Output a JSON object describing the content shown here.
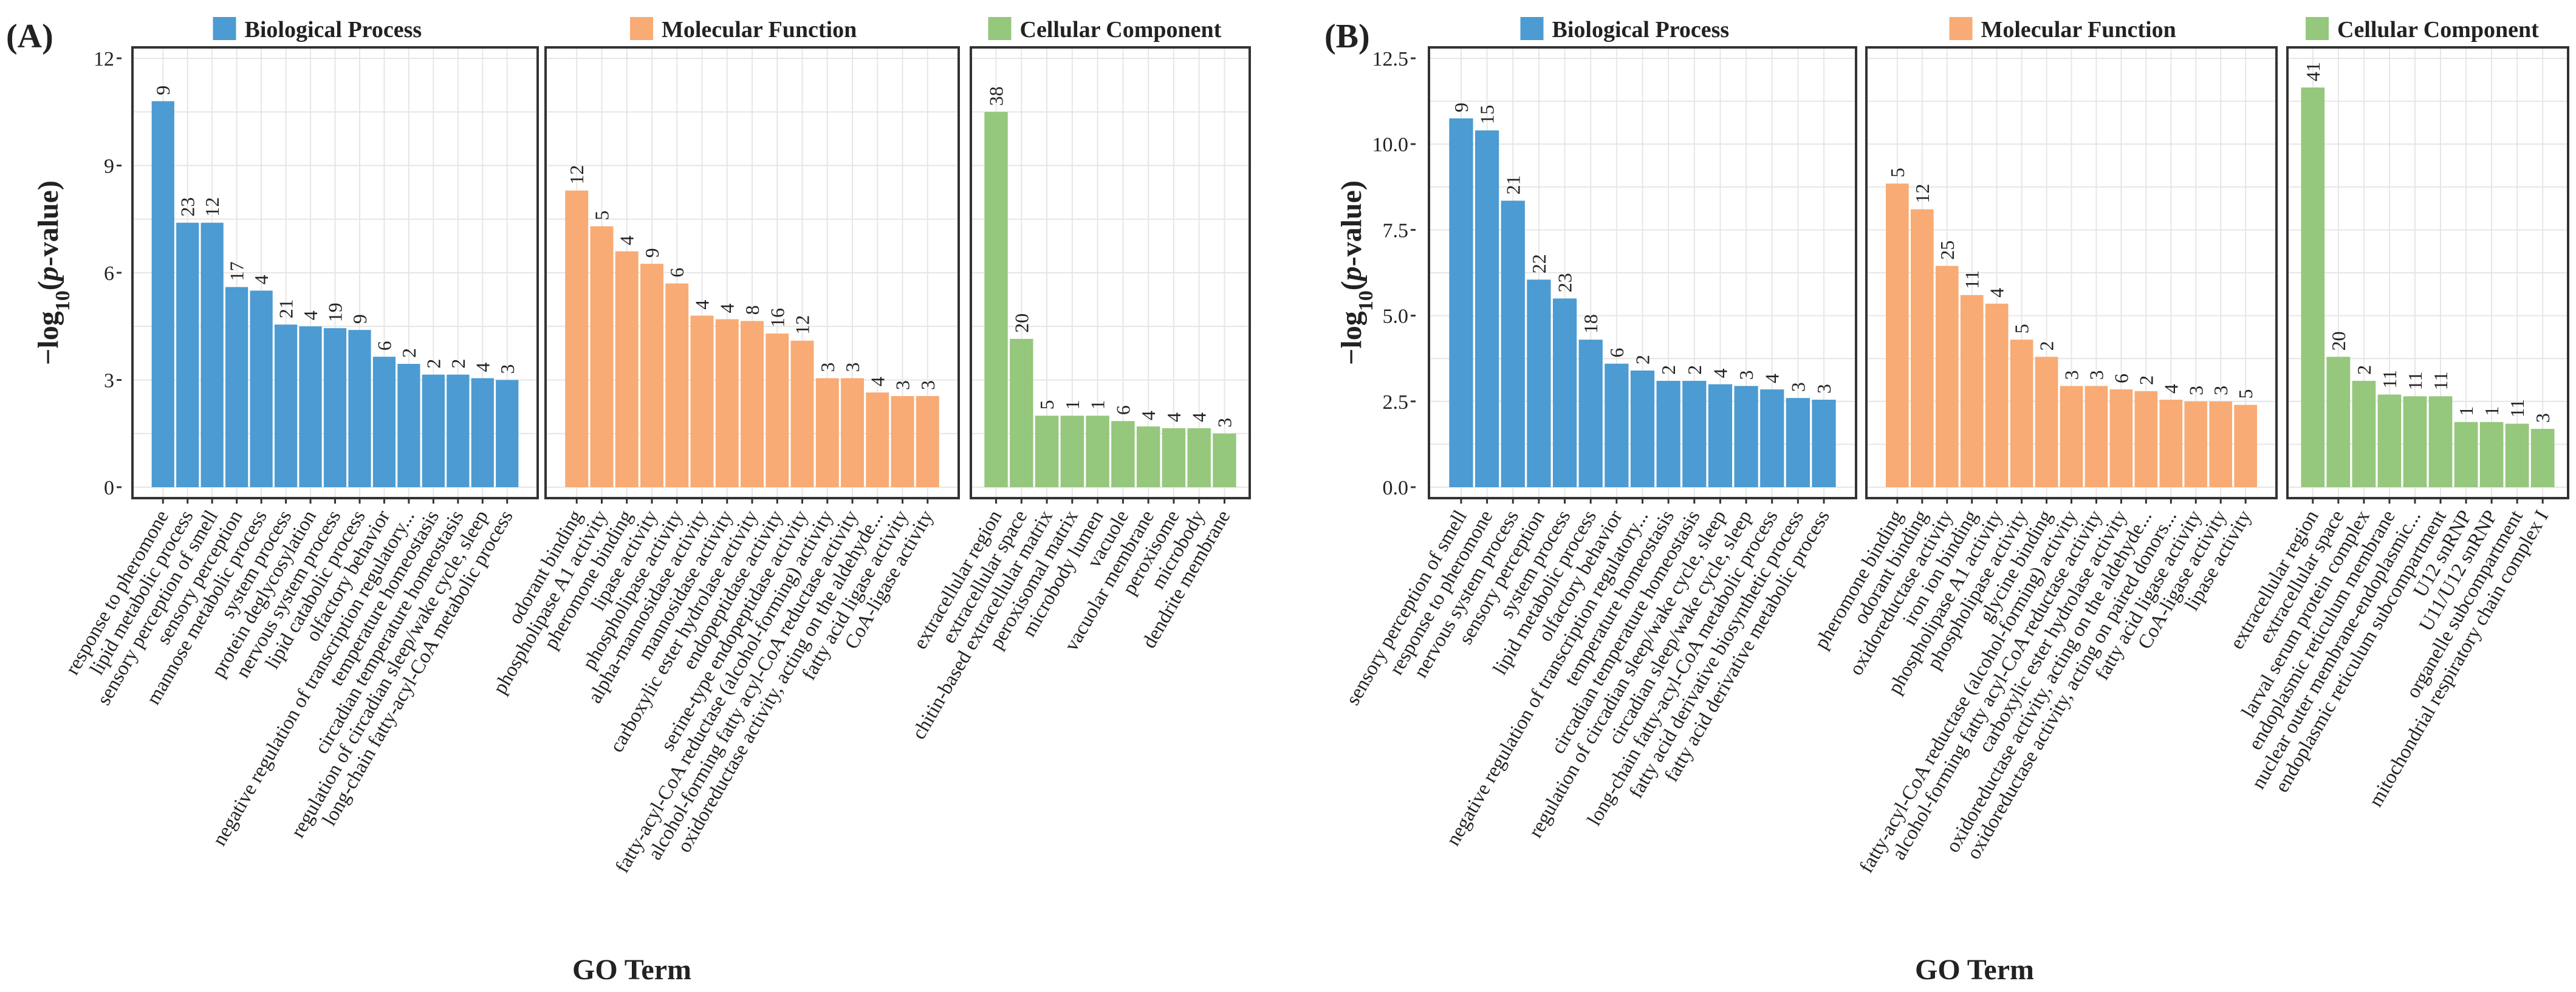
{
  "chart_data": [
    {
      "type": "bar",
      "panel_label": "(A)",
      "xlabel": "GO Term",
      "ylabel_prefix": "−log",
      "ylabel_sub": "10",
      "ylabel_mid": "(",
      "ylabel_italic": "p",
      "ylabel_suffix": "-value)",
      "ylim": [
        0,
        12
      ],
      "yticks": [
        0,
        3,
        6,
        9,
        12
      ],
      "yticks_text": [
        "0",
        "3",
        "6",
        "9",
        "12"
      ],
      "facets": [
        {
          "name": "Biological Process",
          "color": "#4c9bd2",
          "categories": [
            "response to pheromone",
            "lipid metabolic process",
            "sensory perception of smell",
            "sensory perception",
            "mannose metabolic process",
            "system process",
            "protein deglycosylation",
            "nervous system process",
            "lipid catabolic process",
            "olfactory behavior",
            "negative regulation of transcription regulatory...",
            "temperature homeostasis",
            "circadian temperature homeostasis",
            "regulation of circadian sleep/wake cycle, sleep",
            "long-chain fatty-acyl-CoA metabolic process"
          ],
          "values": [
            10.8,
            7.4,
            7.4,
            5.6,
            5.5,
            4.55,
            4.5,
            4.45,
            4.4,
            3.65,
            3.45,
            3.15,
            3.15,
            3.05,
            3.0
          ],
          "counts": [
            "9",
            "23",
            "12",
            "17",
            "4",
            "21",
            "4",
            "19",
            "9",
            "6",
            "2",
            "2",
            "2",
            "4",
            "3"
          ]
        },
        {
          "name": "Molecular Function",
          "color": "#f8ab74",
          "categories": [
            "odorant binding",
            "phospholipase A1 activity",
            "pheromone binding",
            "lipase activity",
            "phospholipase activity",
            "alpha-mannosidase activity",
            "mannosidase activity",
            "carboxylic ester hydrolase activity",
            "endopeptidase activity",
            "serine-type endopeptidase activity",
            "fatty-acyl-CoA reductase (alcohol-forming) activity",
            "alcohol-forming fatty acyl-CoA reductase activity",
            "oxidoreductase activity, acting on the aldehyde...",
            "fatty acid ligase activity",
            "CoA-ligase activity"
          ],
          "values": [
            8.3,
            7.3,
            6.6,
            6.25,
            5.7,
            4.8,
            4.7,
            4.65,
            4.3,
            4.1,
            3.05,
            3.05,
            2.65,
            2.55,
            2.55
          ],
          "counts": [
            "12",
            "5",
            "4",
            "9",
            "6",
            "4",
            "4",
            "8",
            "16",
            "12",
            "3",
            "3",
            "4",
            "3",
            "3"
          ]
        },
        {
          "name": "Cellular Component",
          "color": "#95c77c",
          "categories": [
            "extracellular region",
            "extracellular space",
            "chitin-based extracellular matrix",
            "peroxisomal matrix",
            "microbody lumen",
            "vacuole",
            "vacuolar membrane",
            "peroxisome",
            "microbody",
            "dendrite membrane"
          ],
          "values": [
            10.5,
            4.15,
            2.0,
            2.0,
            2.0,
            1.85,
            1.7,
            1.65,
            1.65,
            1.5
          ],
          "counts": [
            "38",
            "20",
            "5",
            "1",
            "1",
            "6",
            "4",
            "4",
            "4",
            "3"
          ]
        }
      ]
    },
    {
      "type": "bar",
      "panel_label": "(B)",
      "xlabel": "GO Term",
      "ylabel_prefix": "−log",
      "ylabel_sub": "10",
      "ylabel_mid": "(",
      "ylabel_italic": "p",
      "ylabel_suffix": "-value)",
      "ylim": [
        0,
        12.5
      ],
      "yticks": [
        0,
        2.5,
        5,
        7.5,
        10,
        12.5
      ],
      "yticks_text": [
        "0.0",
        "2.5",
        "5.0",
        "7.5",
        "10.0",
        "12.5"
      ],
      "facets": [
        {
          "name": "Biological Process",
          "color": "#4c9bd2",
          "categories": [
            "sensory perception of smell",
            "response to pheromone",
            "nervous system process",
            "sensory perception",
            "system process",
            "lipid metabolic process",
            "olfactory behavior",
            "negative regulation of transcription regulatory...",
            "temperature homeostasis",
            "circadian temperature homeostasis",
            "regulation of circadian sleep/wake cycle, sleep",
            "circadian sleep/wake cycle, sleep",
            "long-chain fatty-acyl-CoA metabolic process",
            "fatty acid derivative biosynthetic process",
            "fatty acid derivative metabolic process"
          ],
          "values": [
            10.75,
            10.4,
            8.35,
            6.05,
            5.5,
            4.3,
            3.6,
            3.4,
            3.1,
            3.1,
            3.0,
            2.95,
            2.85,
            2.6,
            2.55
          ],
          "counts": [
            "9",
            "15",
            "21",
            "22",
            "23",
            "18",
            "6",
            "2",
            "2",
            "2",
            "4",
            "3",
            "4",
            "3",
            "3"
          ]
        },
        {
          "name": "Molecular Function",
          "color": "#f8ab74",
          "categories": [
            "pheromone binding",
            "odorant binding",
            "oxidoreductase activity",
            "iron ion binding",
            "phospholipase A1 activity",
            "phospholipase activity",
            "glycine binding",
            "fatty-acyl-CoA reductase (alcohol-forming) activity",
            "alcohol-forming fatty acyl-CoA reductase activity",
            "carboxylic ester hydrolase activity",
            "oxidoreductase activity, acting on the aldehyde...",
            "oxidoreductase activity, acting on paired donors...",
            "fatty acid ligase activity",
            "CoA-ligase activity",
            "lipase activity"
          ],
          "values": [
            8.85,
            8.1,
            6.45,
            5.6,
            5.35,
            4.3,
            3.8,
            2.95,
            2.95,
            2.85,
            2.8,
            2.55,
            2.5,
            2.5,
            2.4
          ],
          "counts": [
            "5",
            "12",
            "25",
            "11",
            "4",
            "5",
            "2",
            "3",
            "3",
            "6",
            "2",
            "4",
            "3",
            "3",
            "5"
          ]
        },
        {
          "name": "Cellular Component",
          "color": "#95c77c",
          "categories": [
            "extracellular region",
            "extracellular space",
            "larval serum protein complex",
            "endoplasmic reticulum membrane",
            "nuclear outer membrane-endoplasmic...",
            "endoplasmic reticulum subcompartment",
            "U12 snRNP",
            "U11/U12 snRNP",
            "organelle subcompartment",
            "mitochondrial respiratory chain complex I"
          ],
          "values": [
            11.65,
            3.8,
            3.1,
            2.7,
            2.65,
            2.65,
            1.9,
            1.9,
            1.85,
            1.7
          ],
          "counts": [
            "41",
            "20",
            "2",
            "11",
            "11",
            "11",
            "1",
            "1",
            "11",
            "3"
          ]
        }
      ]
    }
  ]
}
